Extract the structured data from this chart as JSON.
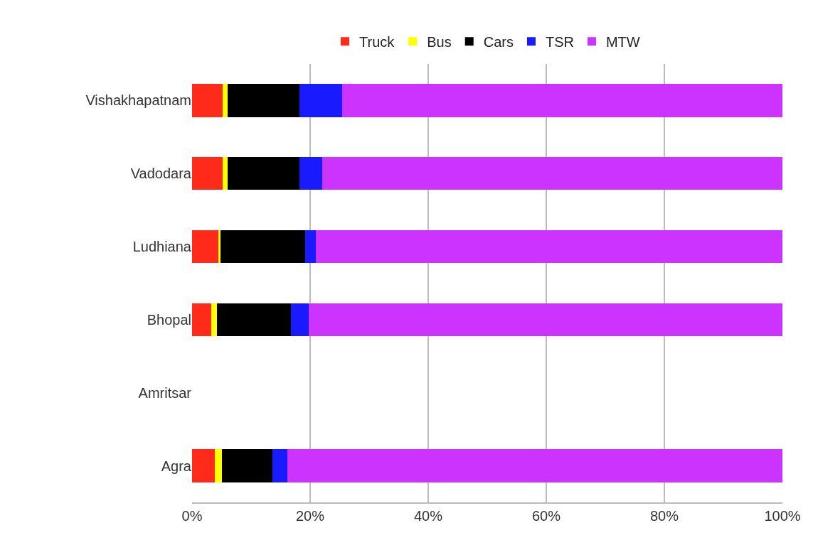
{
  "chart_data": {
    "type": "bar",
    "orientation": "horizontal",
    "stacked": true,
    "categories": [
      "Vishakhapatnam",
      "Vadodara",
      "Ludhiana",
      "Bhopal",
      "Amritsar",
      "Agra"
    ],
    "series": [
      {
        "name": "Truck",
        "color": "#ff2a1a",
        "values": [
          5.2,
          5.2,
          4.5,
          3.3,
          null,
          3.8
        ]
      },
      {
        "name": "Bus",
        "color": "#ffff00",
        "values": [
          0.8,
          0.8,
          0.3,
          0.9,
          null,
          1.2
        ]
      },
      {
        "name": "Cars",
        "color": "#000000",
        "values": [
          12.2,
          12.2,
          14.4,
          12.6,
          null,
          8.6
        ]
      },
      {
        "name": "TSR",
        "color": "#1a1aff",
        "values": [
          7.2,
          3.8,
          1.8,
          3.0,
          null,
          2.5
        ]
      },
      {
        "name": "MTW",
        "color": "#cc33ff",
        "values": [
          74.6,
          78.0,
          79.0,
          80.2,
          null,
          83.9
        ]
      }
    ],
    "xlim": [
      0,
      100
    ],
    "xticks": [
      {
        "value": 0,
        "label": "0%"
      },
      {
        "value": 20,
        "label": "20%"
      },
      {
        "value": 40,
        "label": "40%"
      },
      {
        "value": 60,
        "label": "60%"
      },
      {
        "value": 80,
        "label": "80%"
      },
      {
        "value": 100,
        "label": "100%"
      }
    ],
    "grid": "x",
    "legend": "top"
  }
}
